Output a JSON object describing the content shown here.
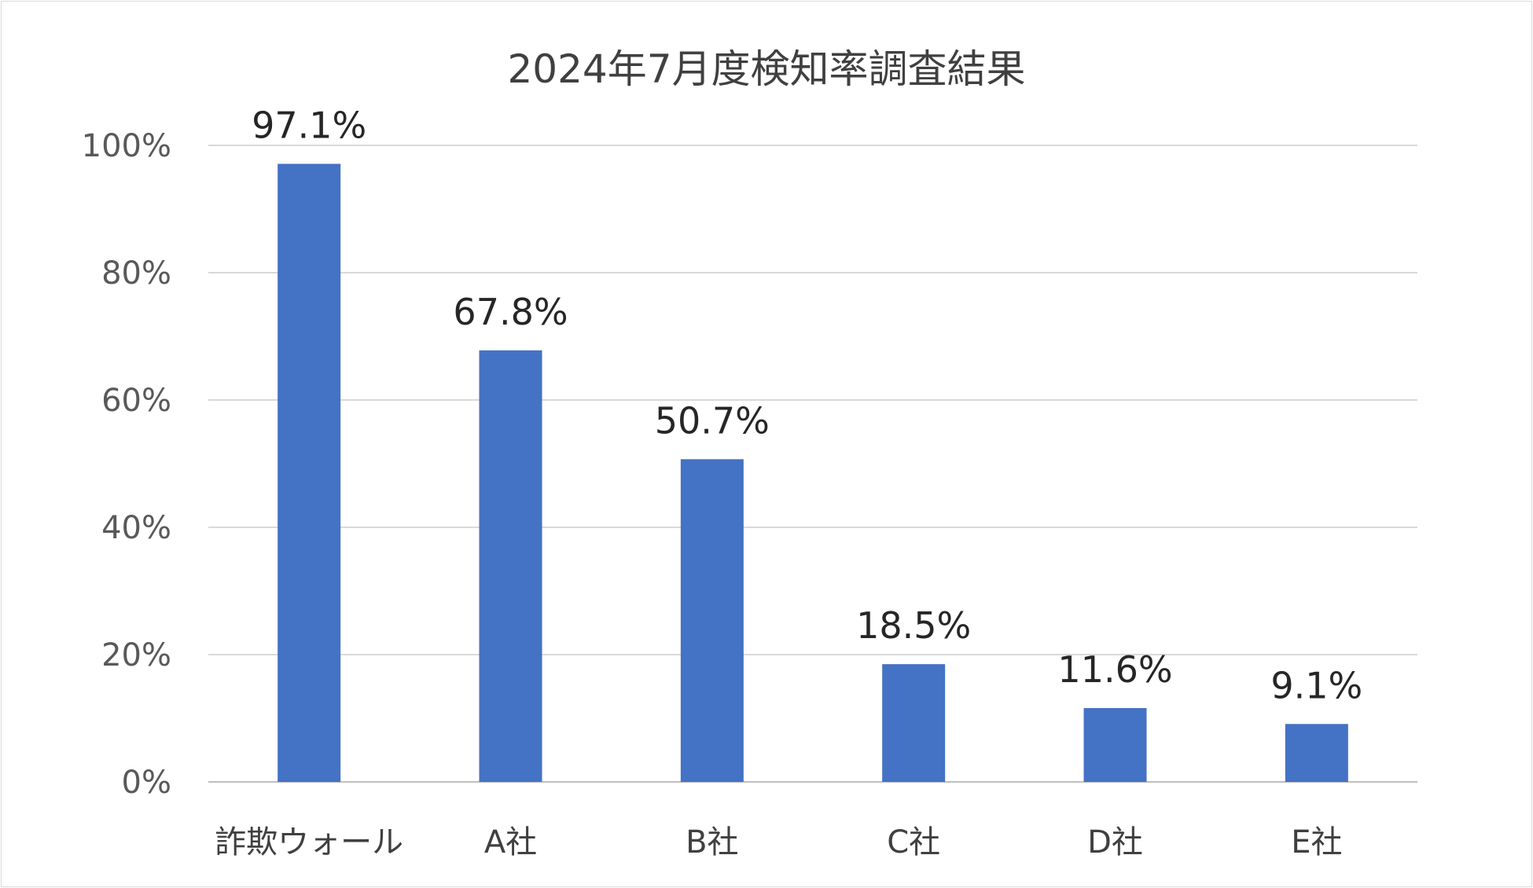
{
  "chart_data": {
    "type": "bar",
    "title": "2024年7月度検知率調査結果",
    "categories": [
      "詐欺ウォール",
      "A社",
      "B社",
      "C社",
      "D社",
      "E社"
    ],
    "values": [
      97.1,
      67.8,
      50.7,
      18.5,
      11.6,
      9.1
    ],
    "data_labels": [
      "97.1%",
      "67.8%",
      "50.7%",
      "18.5%",
      "11.6%",
      "9.1%"
    ],
    "yticks": [
      "0%",
      "20%",
      "40%",
      "60%",
      "80%",
      "100%"
    ],
    "ylim": [
      0,
      100
    ],
    "xlabel": "",
    "ylabel": "",
    "grid": true,
    "legend": "none",
    "bar_color": "#4472C4"
  }
}
